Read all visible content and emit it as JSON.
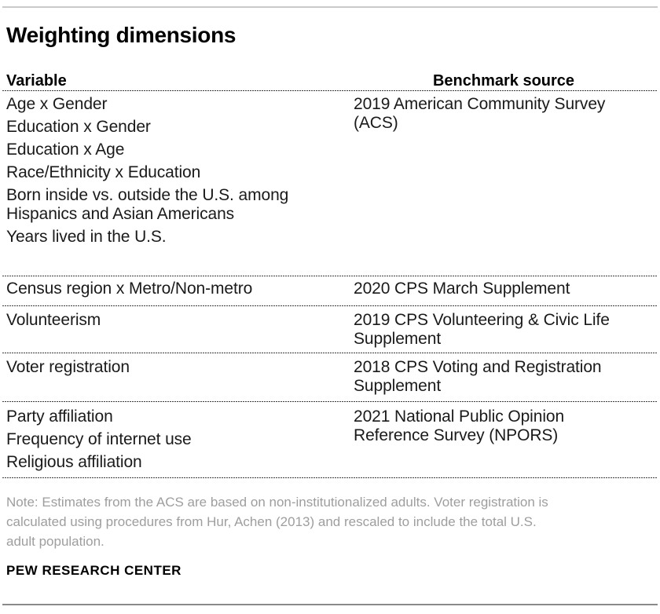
{
  "chart_data": {
    "type": "table",
    "title": "Weighting dimensions",
    "columns": [
      "Variable",
      "Benchmark source"
    ],
    "rows": [
      {
        "variables": [
          "Age x Gender",
          "Education x Gender",
          "Education x Age",
          "Race/Ethnicity x Education",
          "Born inside vs. outside the U.S. among\nHispanics and Asian Americans",
          "Years lived in the U.S."
        ],
        "benchmark": "2019 American Community Survey\n(ACS)"
      },
      {
        "variables": [
          "Census region x Metro/Non-metro"
        ],
        "benchmark": "2020 CPS March Supplement"
      },
      {
        "variables": [
          "Volunteerism"
        ],
        "benchmark": "2019 CPS Volunteering & Civic Life\nSupplement"
      },
      {
        "variables": [
          "Voter registration"
        ],
        "benchmark": "2018 CPS Voting and Registration\nSupplement"
      },
      {
        "variables": [
          "Party affiliation",
          "Frequency of internet use",
          "Religious affiliation"
        ],
        "benchmark": "2021 National Public Opinion\nReference Survey (NPORS)"
      }
    ],
    "note": "Note: Estimates from the ACS are based on non-institutionalized adults. Voter registration is\ncalculated using procedures from Hur, Achen (2013) and rescaled to include the total U.S.\nadult population.",
    "source": "PEW RESEARCH CENTER",
    "layout": {
      "grid": "dotted horizontal separators between row groups",
      "legend_position": "none"
    },
    "colors": {
      "text": "#1a1a1a",
      "note_gray": "#9e9e9e",
      "rule_top": "#c9c9c9",
      "rule_bottom": "#8a8a8a",
      "separator_dot": "#3d3d3d"
    }
  }
}
